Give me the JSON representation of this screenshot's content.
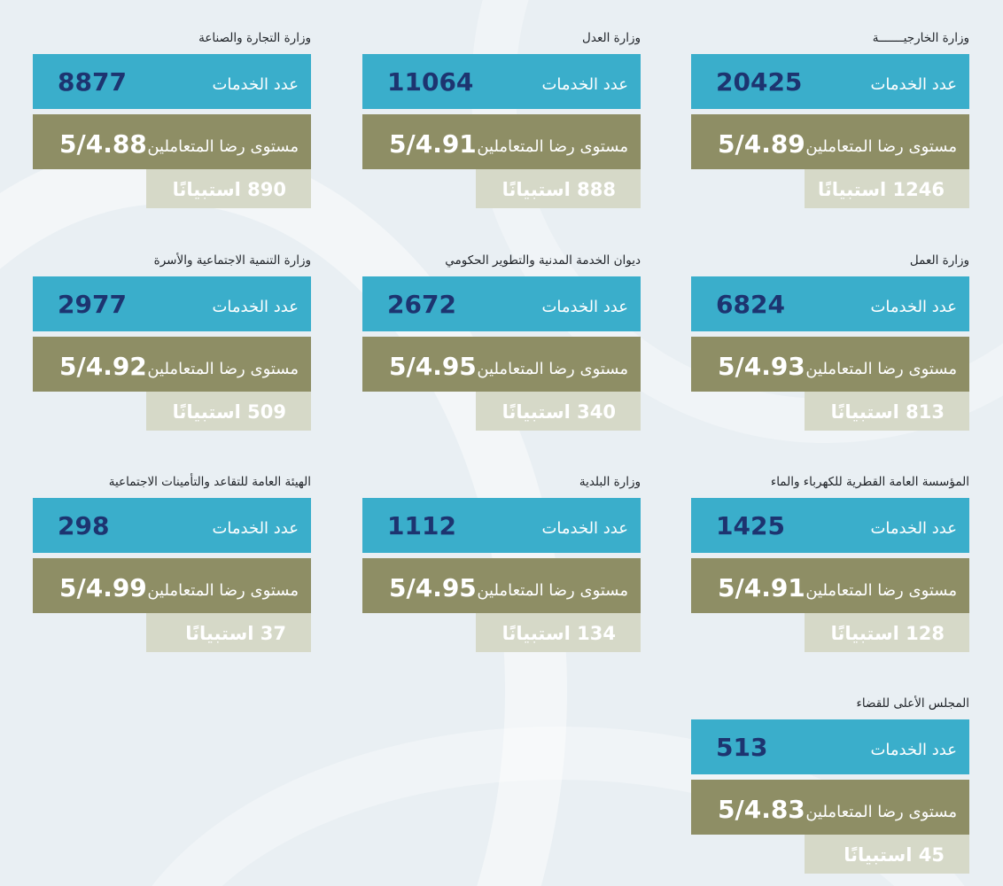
{
  "labels": {
    "services": "عدد الخدمات",
    "satisfaction": "مستوى رضا المتعاملين",
    "survey_word": "استبيانًا"
  },
  "colors": {
    "services_bar": "#3aaecb",
    "services_number": "#1d3470",
    "satisfaction_bar": "#8e8e65",
    "survey_bar": "#d6d9c8",
    "background": "#e9eff3"
  },
  "cards": [
    {
      "title": "وزارة الخارجيـــــــة",
      "services": "20425",
      "satisfaction": "5/4.89",
      "surveys": "1246 استبيانًا"
    },
    {
      "title": "وزارة العدل",
      "services": "11064",
      "satisfaction": "5/4.91",
      "surveys": "888 استبيانًا"
    },
    {
      "title": "وزارة التجارة والصناعة",
      "services": "8877",
      "satisfaction": "5/4.88",
      "surveys": "890 استبيانًا"
    },
    {
      "title": "وزارة العمل",
      "services": "6824",
      "satisfaction": "5/4.93",
      "surveys": "813 استبيانًا"
    },
    {
      "title": "ديوان الخدمة المدنية والتطوير الحكومي",
      "services": "2672",
      "satisfaction": "5/4.95",
      "surveys": "340 استبيانًا"
    },
    {
      "title": "وزارة التنمية الاجتماعية والأسرة",
      "services": "2977",
      "satisfaction": "5/4.92",
      "surveys": "509 استبيانًا"
    },
    {
      "title": "المؤسسة العامة القطرية للكهرباء والماء",
      "services": "1425",
      "satisfaction": "5/4.91",
      "surveys": "128 استبيانًا"
    },
    {
      "title": "وزارة البلدية",
      "services": "1112",
      "satisfaction": "5/4.95",
      "surveys": "134 استبيانًا"
    },
    {
      "title": "الهيئة العامة للتقاعد والتأمينات الاجتماعية",
      "services": "298",
      "satisfaction": "5/4.99",
      "surveys": "37 استبيانًا"
    },
    {
      "title": "المجلس الأعلى للقضاء",
      "services": "513",
      "satisfaction": "5/4.83",
      "surveys": "45 استبيانًا"
    }
  ]
}
